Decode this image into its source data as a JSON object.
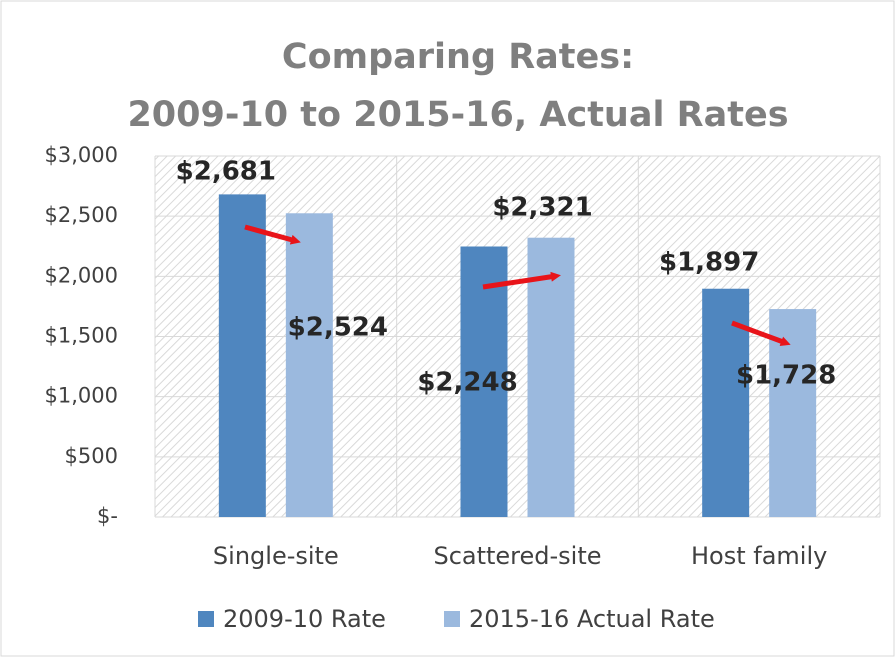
{
  "chart_data": {
    "type": "bar",
    "title": [
      "Comparing Rates:",
      "2009-10 to 2015-16, Actual Rates"
    ],
    "categories": [
      "Single-site",
      "Scattered-site",
      "Host family"
    ],
    "series": [
      {
        "name": "2009-10 Rate",
        "color": "#4f86bf",
        "values": [
          2681,
          2248,
          1897
        ],
        "value_labels": [
          "$2,681",
          "$2,248",
          "$1,897"
        ]
      },
      {
        "name": "2015-16 Actual Rate",
        "color": "#9bb9de",
        "values": [
          2524,
          2321,
          1728
        ],
        "value_labels": [
          "$2,524",
          "$2,321",
          "$1,728"
        ]
      }
    ],
    "ylim": [
      0,
      3000
    ],
    "yticks": [
      {
        "value": 0,
        "label": "$-"
      },
      {
        "value": 500,
        "label": "$500"
      },
      {
        "value": 1000,
        "label": "$1,000"
      },
      {
        "value": 1500,
        "label": "$1,500"
      },
      {
        "value": 2000,
        "label": "$2,000"
      },
      {
        "value": 2500,
        "label": "$2,500"
      },
      {
        "value": 3000,
        "label": "$3,000"
      }
    ],
    "grid": true,
    "legend": "bottom"
  }
}
